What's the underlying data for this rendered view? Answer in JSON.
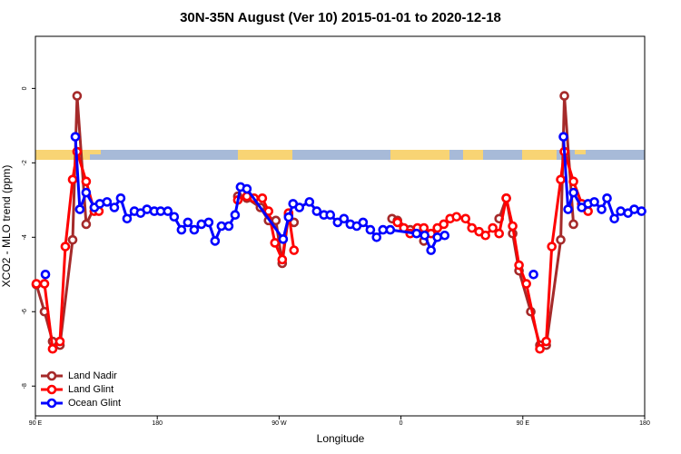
{
  "chart_data": {
    "type": "line",
    "title": "30N-35N August (Ver 10)   2015-01-01 to 2020-12-18",
    "x_label": "Longitude",
    "y_label": "XCO2 - MLO trend (ppm)",
    "xlim": [
      90,
      540
    ],
    "ylim": [
      -8.8,
      1.4
    ],
    "xticks": [
      {
        "value": 90,
        "label": "90 E"
      },
      {
        "value": 180,
        "label": "180"
      },
      {
        "value": 270,
        "label": "90 W"
      },
      {
        "value": 360,
        "label": "0"
      },
      {
        "value": 450,
        "label": "90 E"
      },
      {
        "value": 540,
        "label": "180"
      }
    ],
    "yticks": [
      -8,
      -6,
      -4,
      -2,
      0
    ],
    "legend": "bottomleft",
    "series": [
      {
        "name": "Land Nadir",
        "color": "#a52a2a",
        "x": [
          90.7,
          96.7,
          102.7,
          108.1,
          117.5,
          120.8,
          127.5,
          133.5,
          null,
          239.5,
          246.2,
          256.2,
          262.2,
          267.6,
          272.3,
          277.0,
          281.0,
          null,
          353.4,
          357.4,
          366.8,
          372.2,
          376.9,
          null,
          432.5,
          437.8,
          442.5,
          447.2,
          455.9,
          462.6,
          467.3,
          478.0,
          480.7,
          487.4
        ],
        "values": [
          -5.27,
          -6.0,
          -6.8,
          -6.9,
          -4.07,
          -0.2,
          -3.65,
          -3.2,
          null,
          -2.9,
          -2.95,
          -3.2,
          -3.55,
          -3.55,
          -4.7,
          -3.4,
          -3.6,
          null,
          -3.5,
          -3.55,
          -3.8,
          -3.8,
          -4.1,
          null,
          -3.5,
          -2.95,
          -3.9,
          -4.9,
          -6.0,
          -6.9,
          -6.9,
          -4.07,
          -0.2,
          -3.65
        ]
      },
      {
        "name": "Land Glint",
        "color": "#ff0000",
        "x": [
          90.7,
          96.7,
          102.7,
          108.1,
          112.1,
          117.5,
          120.8,
          127.5,
          133.5,
          136.9,
          null,
          239.5,
          246.2,
          251.5,
          257.6,
          262.2,
          266.9,
          272.3,
          277.0,
          281.0,
          null,
          357.4,
          362.1,
          366.8,
          372.2,
          376.9,
          382.2,
          386.9,
          391.6,
          396.3,
          401.0,
          407.7,
          412.4,
          417.7,
          422.4,
          427.8,
          432.5,
          437.8,
          442.5,
          447.2,
          452.6,
          462.6,
          467.3,
          471.4,
          478.0,
          480.7,
          487.4,
          493.5,
          498.2
        ],
        "values": [
          -5.25,
          -5.25,
          -7.0,
          -6.8,
          -4.25,
          -2.45,
          -1.7,
          -2.5,
          -3.3,
          -3.3,
          null,
          -3.0,
          -2.9,
          -2.95,
          -2.95,
          -3.3,
          -4.15,
          -4.6,
          -3.35,
          -4.35,
          null,
          -3.6,
          -3.75,
          -3.9,
          -3.75,
          -3.75,
          -3.9,
          -3.75,
          -3.65,
          -3.5,
          -3.45,
          -3.5,
          -3.75,
          -3.85,
          -3.95,
          -3.75,
          -3.9,
          -2.95,
          -3.7,
          -4.75,
          -5.25,
          -7.0,
          -6.8,
          -4.25,
          -2.45,
          -1.7,
          -2.5,
          -3.1,
          -3.3
        ]
      },
      {
        "name": "Ocean Glint",
        "color": "#0000ff",
        "x": [
          97.4,
          null,
          119.5,
          122.8,
          127.5,
          133.6,
          137.6,
          142.9,
          148.3,
          153.0,
          157.7,
          163.1,
          167.7,
          172.4,
          177.8,
          182.5,
          187.8,
          192.5,
          197.9,
          202.6,
          207.3,
          212.6,
          218.0,
          222.7,
          227.4,
          232.8,
          237.5,
          241.5,
          246.2,
          273.0,
          277.0,
          280.3,
          285.0,
          292.4,
          297.8,
          303.1,
          307.8,
          313.2,
          317.9,
          322.6,
          327.3,
          332.0,
          337.4,
          342.0,
          346.7,
          352.1,
          371.5,
          377.5,
          382.2,
          386.9,
          392.3,
          null,
          457.9,
          null,
          480.0,
          483.4,
          487.4,
          493.5,
          498.2,
          502.8,
          508.2,
          512.2,
          517.6,
          522.3,
          527.7,
          532.3,
          537.7
        ],
        "values": [
          -5.0,
          null,
          -1.3,
          -3.25,
          -2.8,
          -3.2,
          -3.1,
          -3.05,
          -3.2,
          -2.95,
          -3.5,
          -3.3,
          -3.35,
          -3.25,
          -3.3,
          -3.3,
          -3.3,
          -3.45,
          -3.8,
          -3.6,
          -3.8,
          -3.65,
          -3.6,
          -4.1,
          -3.7,
          -3.7,
          -3.4,
          -2.65,
          -2.7,
          -4.05,
          -3.46,
          -3.1,
          -3.2,
          -3.05,
          -3.3,
          -3.4,
          -3.4,
          -3.6,
          -3.5,
          -3.65,
          -3.7,
          -3.6,
          -3.8,
          -4.0,
          -3.8,
          -3.8,
          -3.9,
          -3.95,
          -4.35,
          -4.0,
          -3.95,
          null,
          -5.0,
          null,
          -1.3,
          -3.25,
          -2.8,
          -3.2,
          -3.1,
          -3.05,
          -3.25,
          -2.95,
          -3.5,
          -3.3,
          -3.35,
          -3.25,
          -3.3
        ]
      }
    ]
  }
}
